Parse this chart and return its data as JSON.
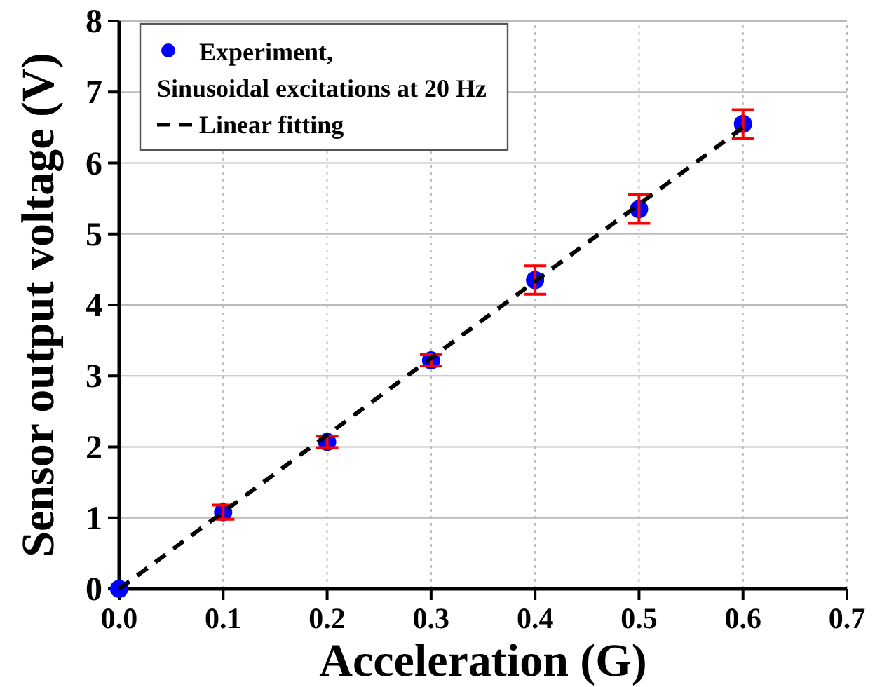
{
  "chart_data": {
    "type": "scatter",
    "xlabel": "Acceleration (G)",
    "ylabel": "Sensor output voltage (V)",
    "xlim": [
      0,
      0.7
    ],
    "ylim": [
      0,
      8
    ],
    "xticks": [
      {
        "value": 0,
        "label": "0.0"
      },
      0.1,
      0.2,
      0.3,
      0.4,
      0.5,
      0.6,
      0.7
    ],
    "yticks": [
      0,
      1,
      2,
      3,
      4,
      5,
      6,
      7,
      8
    ],
    "grid": true,
    "legend": "top left",
    "series": [
      {
        "name": "Experiment,\nSinusoidal excitations at 20 Hz",
        "color": "#0000ff",
        "marker": "circle",
        "x": [
          0,
          0.1,
          0.2,
          0.3,
          0.4,
          0.5,
          0.6
        ],
        "values": [
          0,
          1.08,
          2.07,
          3.22,
          4.35,
          5.35,
          6.55
        ],
        "errors": [
          null,
          0.1,
          0.08,
          0.08,
          0.2,
          0.2,
          0.2
        ]
      },
      {
        "name": "Linear fitting",
        "type": "line",
        "color": "#000000",
        "line_style": "dashed",
        "marker": "none",
        "x": [
          0,
          0.6
        ],
        "values": [
          0,
          6.5
        ]
      }
    ]
  }
}
